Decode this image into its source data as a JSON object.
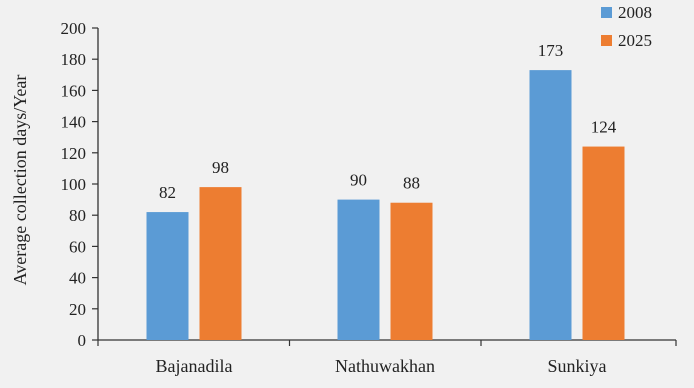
{
  "chart_data": {
    "type": "bar",
    "title": "",
    "xlabel": "",
    "ylabel": "Average collection days/Year",
    "ylim": [
      0,
      200
    ],
    "yticks": [
      0,
      20,
      40,
      60,
      80,
      100,
      120,
      140,
      160,
      180,
      200
    ],
    "categories": [
      "Bajanadila",
      "Nathuwakhan",
      "Sunkiya"
    ],
    "series": [
      {
        "name": "2008",
        "color": "#5b9bd5",
        "values": [
          82,
          90,
          173
        ]
      },
      {
        "name": "2025",
        "color": "#ed7d31",
        "values": [
          98,
          88,
          124
        ]
      }
    ],
    "legend": "top-right",
    "grid": false,
    "data_labels": true
  }
}
